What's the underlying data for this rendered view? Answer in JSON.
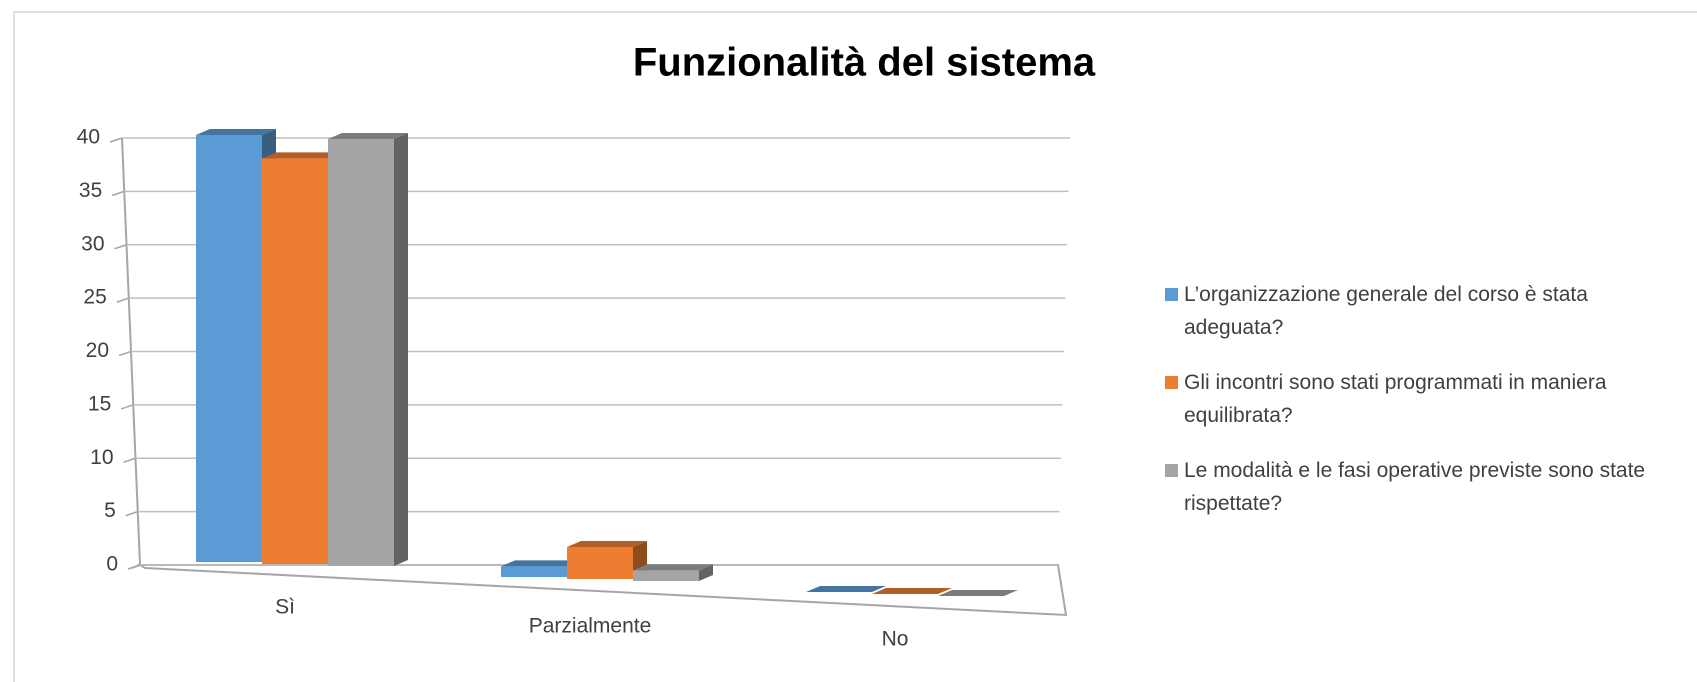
{
  "chart_data": {
    "type": "bar3d",
    "title": "Funzionalità del sistema",
    "categories": [
      "Sì",
      "Parzialmente",
      "No"
    ],
    "series": [
      {
        "name": "L’organizzazione generale del corso è stata adeguata?",
        "color": "#5b9bd5",
        "values": [
          40,
          1,
          0
        ]
      },
      {
        "name": "Gli incontri sono stati programmati in maniera equilibrata?",
        "color": "#ed7d31",
        "values": [
          38,
          3,
          0
        ]
      },
      {
        "name": "Le modalità e le fasi operative previste sono state rispettate?",
        "color": "#a5a5a5",
        "values": [
          40,
          1,
          0
        ]
      }
    ],
    "ylim": [
      0,
      40
    ],
    "yticks": [
      0,
      5,
      10,
      15,
      20,
      25,
      30,
      35,
      40
    ],
    "grid": true,
    "legend": "right"
  }
}
